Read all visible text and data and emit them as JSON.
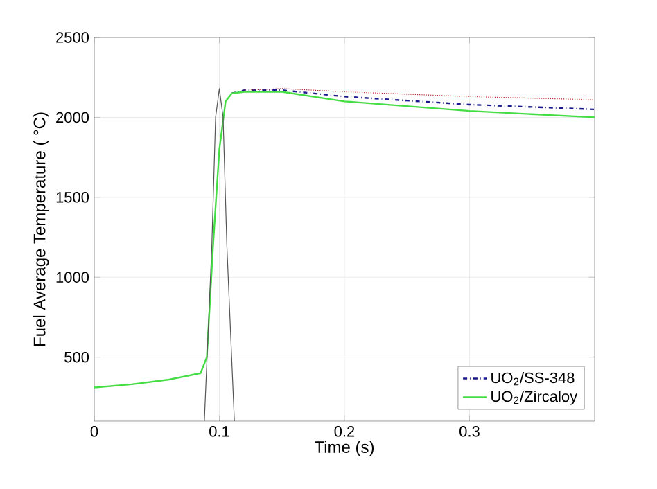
{
  "chart_data": {
    "type": "line",
    "xlabel": "Time (s)",
    "ylabel": "Fuel Average Temperature ( °C)",
    "xlim": [
      0,
      0.4
    ],
    "ylim": [
      100,
      2500
    ],
    "xticks": [
      0,
      0.1,
      0.2,
      0.3
    ],
    "yticks": [
      500,
      1000,
      1500,
      2000,
      2500
    ],
    "grid": true,
    "legend": "bottom right",
    "series": [
      {
        "name": "UO$_{2}$/SS-348",
        "color": "#1a1a8c",
        "line_style": "dashdot",
        "x": [
          0.11,
          0.12,
          0.15,
          0.2,
          0.3,
          0.4
        ],
        "values": [
          2150,
          2170,
          2170,
          2130,
          2080,
          2050
        ]
      },
      {
        "color": "#b22222",
        "line_style": "dotted",
        "x": [
          0.12,
          0.15,
          0.2,
          0.3,
          0.4
        ],
        "values": [
          2170,
          2180,
          2160,
          2130,
          2110
        ]
      },
      {
        "name": "UO$_{2}$/Zircaloy",
        "color": "#44dd44",
        "line_style": "solid",
        "x": [
          0,
          0.03,
          0.06,
          0.085,
          0.09,
          0.095,
          0.1,
          0.105,
          0.11,
          0.12,
          0.15,
          0.2,
          0.3,
          0.4
        ],
        "values": [
          310,
          330,
          360,
          400,
          500,
          1200,
          1800,
          2100,
          2150,
          2160,
          2160,
          2100,
          2040,
          2000
        ]
      },
      {
        "color": "#555555",
        "line_style": "solid",
        "x": [
          0.088,
          0.094,
          0.097,
          0.1,
          0.103,
          0.106,
          0.112
        ],
        "values": [
          100,
          1200,
          2000,
          2180,
          2000,
          1200,
          100
        ]
      }
    ]
  }
}
